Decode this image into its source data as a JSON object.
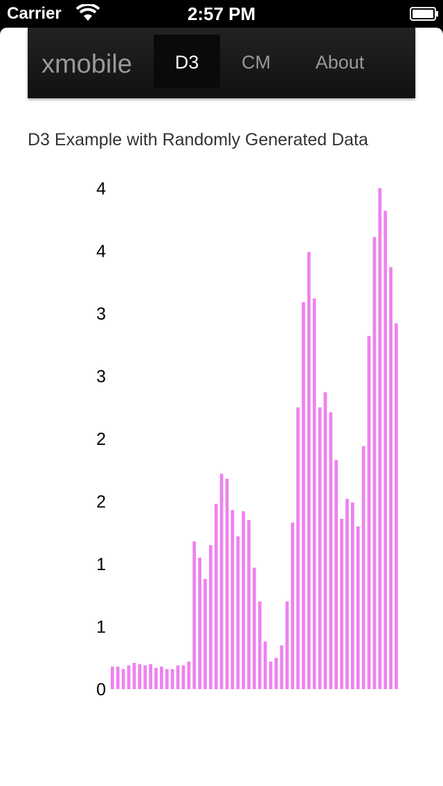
{
  "status_bar": {
    "carrier": "Carrier",
    "time": "2:57 PM",
    "wifi_icon": "wifi-icon",
    "battery_icon": "battery-icon"
  },
  "navbar": {
    "brand": "xmobile",
    "items": [
      {
        "label": "D3",
        "active": true
      },
      {
        "label": "CM",
        "active": false
      },
      {
        "label": "About",
        "active": false
      }
    ]
  },
  "chart_title": "D3 Example with Randomly Generated Data",
  "chart_data": {
    "type": "bar",
    "title": "D3 Example with Randomly Generated Data",
    "xlabel": "",
    "ylabel": "",
    "ylim": [
      0,
      4.0
    ],
    "ytick_values": [
      0,
      0.5,
      1.0,
      1.5,
      2.0,
      2.5,
      3.0,
      3.5,
      4.0
    ],
    "ytick_labels": [
      "0",
      "1",
      "1",
      "2",
      "2",
      "3",
      "3",
      "4",
      "4"
    ],
    "grid": false,
    "bar_color": "#ee82ee",
    "values": [
      0.18,
      0.18,
      0.16,
      0.19,
      0.21,
      0.2,
      0.19,
      0.2,
      0.17,
      0.18,
      0.16,
      0.16,
      0.19,
      0.19,
      0.22,
      1.18,
      1.05,
      0.88,
      1.15,
      1.48,
      1.72,
      1.68,
      1.43,
      1.22,
      1.42,
      1.35,
      0.97,
      0.7,
      0.38,
      0.22,
      0.25,
      0.35,
      0.7,
      1.33,
      2.25,
      3.09,
      3.49,
      3.12,
      2.25,
      2.37,
      2.21,
      1.83,
      1.36,
      1.52,
      1.49,
      1.3,
      1.94,
      2.82,
      3.61,
      4.0,
      3.82,
      3.37,
      2.92
    ]
  }
}
